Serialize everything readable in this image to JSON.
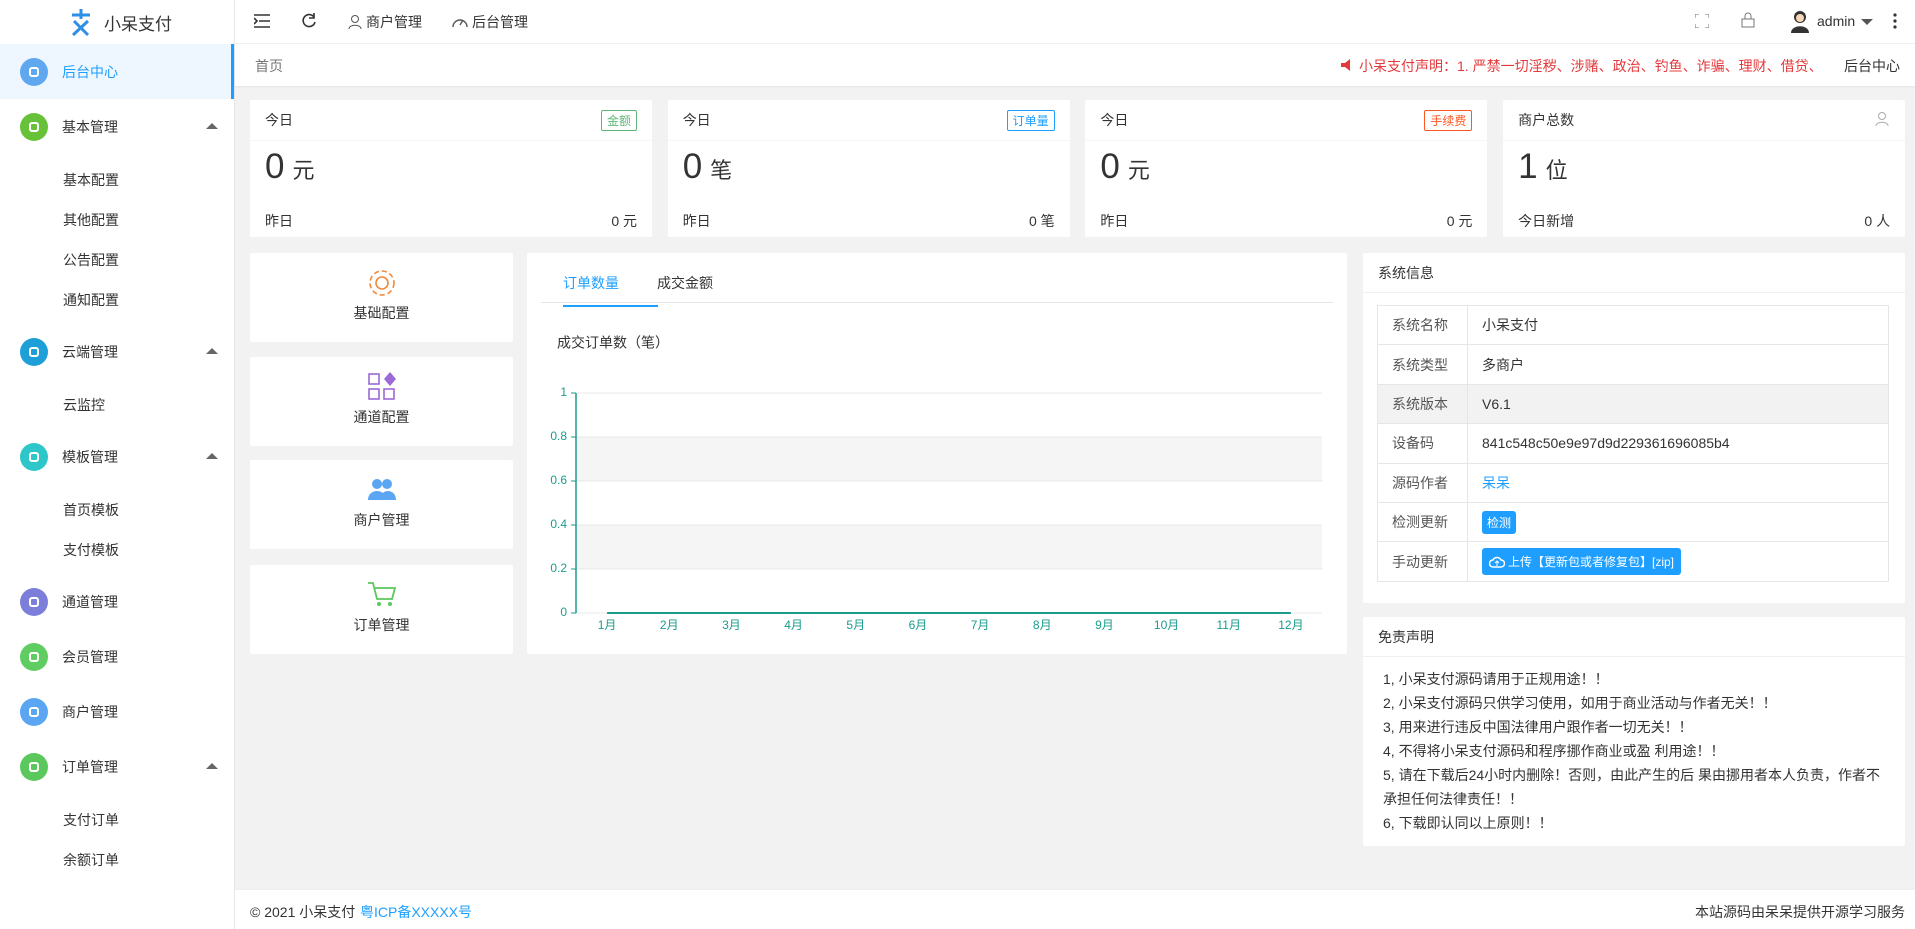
{
  "header": {
    "logo": "小呆支付",
    "nav": [
      "商户管理",
      "后台管理"
    ],
    "user": "admin"
  },
  "sidebar": {
    "items": [
      {
        "label": "后台中心"
      },
      {
        "label": "基本管理",
        "children": [
          "基本配置",
          "其他配置",
          "公告配置",
          "通知配置"
        ]
      },
      {
        "label": "云端管理",
        "children": [
          "云监控"
        ]
      },
      {
        "label": "模板管理",
        "children": [
          "首页模板",
          "支付模板"
        ]
      },
      {
        "label": "通道管理"
      },
      {
        "label": "会员管理"
      },
      {
        "label": "商户管理"
      },
      {
        "label": "订单管理",
        "children": [
          "支付订单",
          "余额订单"
        ]
      }
    ]
  },
  "breadcrumb": {
    "current": "首页",
    "notice": "小呆支付声明：1. 严禁一切淫秽、涉赌、政治、钓鱼、诈骗、理财、借贷、",
    "right": "后台中心"
  },
  "stats": [
    {
      "label": "今日",
      "badge": "金额",
      "value": 0,
      "unit": "元",
      "sub_label": "昨日",
      "sub_value": "0 元"
    },
    {
      "label": "今日",
      "badge": "订单量",
      "value": 0,
      "unit": "笔",
      "sub_label": "昨日",
      "sub_value": "0 笔"
    },
    {
      "label": "今日",
      "badge": "手续费",
      "value": 0,
      "unit": "元",
      "sub_label": "昨日",
      "sub_value": "0 元"
    },
    {
      "label": "商户总数",
      "value": 1,
      "unit": "位",
      "sub_label": "今日新增",
      "sub_value": "0 人"
    }
  ],
  "shortcuts": [
    "基础配置",
    "通道配置",
    "商户管理",
    "订单管理"
  ],
  "tabs": [
    "订单数量",
    "成交金额"
  ],
  "chart_data": {
    "type": "line",
    "title": "成交订单数（笔）",
    "categories": [
      "1月",
      "2月",
      "3月",
      "4月",
      "5月",
      "6月",
      "7月",
      "8月",
      "9月",
      "10月",
      "11月",
      "12月"
    ],
    "values": [
      0,
      0,
      0,
      0,
      0,
      0,
      0,
      0,
      0,
      0,
      0,
      0
    ],
    "color": "#1a9c8c",
    "ylim": [
      0,
      1
    ],
    "yticks": [
      0,
      0.2,
      0.4,
      0.6,
      0.8,
      1
    ],
    "grid": true
  },
  "system_info": {
    "title": "系统信息",
    "rows": [
      [
        "系统名称",
        "小呆支付"
      ],
      [
        "系统类型",
        "多商户"
      ],
      [
        "系统版本",
        "V6.1"
      ],
      [
        "设备码",
        "841c548c50e9e97d9d229361696085b4"
      ],
      [
        "源码作者",
        "呆呆"
      ],
      [
        "检测更新",
        "检测"
      ],
      [
        "手动更新",
        "上传【更新包或者修复包】[zip]"
      ]
    ]
  },
  "disclaimer": {
    "title": "免责声明",
    "lines": [
      "1, 小呆支付源码请用于正规用途！！",
      "2, 小呆支付源码只供学习使用，如用于商业活动与作者无关！！",
      "3, 用来进行违反中国法律用户跟作者一切无关！！",
      "4, 不得将小呆支付源码和程序挪作商业或盈 利用途！！",
      "5, 请在下载后24小时内删除！否则，由此产生的后 果由挪用者本人负责，作者不承担任何法律责任！！",
      "6, 下载即认同以上原则！！"
    ]
  },
  "footer": {
    "copyright": "© 2021 小呆支付",
    "icp": "粤ICP备XXXXX号",
    "right": "本站源码由呆呆提供开源学习服务"
  }
}
